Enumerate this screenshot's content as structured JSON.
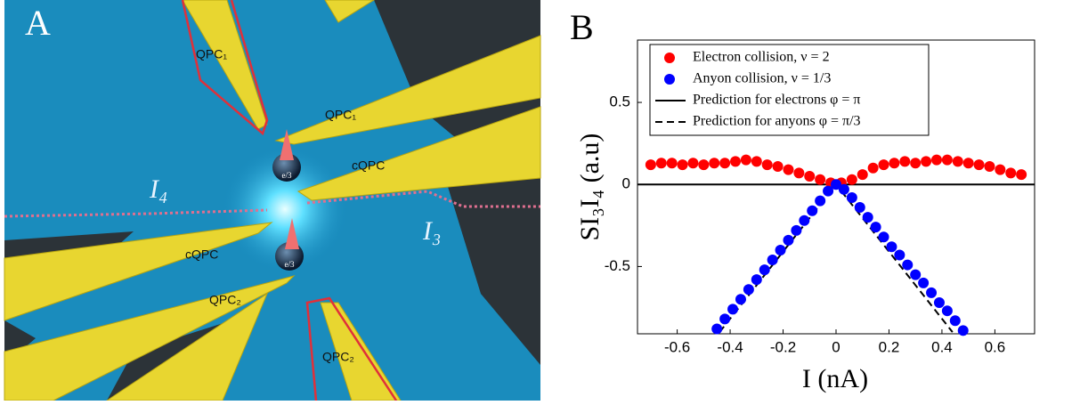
{
  "panel_a": {
    "label": "A",
    "gate_labels": [
      "QPC₁",
      "QPC₁",
      "cQPC",
      "cQPC",
      "QPC₂",
      "QPC₂"
    ],
    "current_labels": [
      "I₄",
      "I₃"
    ],
    "charge_labels": [
      "e/3",
      "e/3"
    ]
  },
  "chart_data": {
    "type": "scatter",
    "panel_label": "B",
    "x_label": "I (nA)",
    "y_label": "SI₃I₄ (a.u)",
    "xlim": [
      -0.75,
      0.75
    ],
    "xticks": [
      -0.6,
      -0.4,
      -0.2,
      0,
      0.2,
      0.4,
      0.6
    ],
    "ylim": [
      -0.91,
      0.88
    ],
    "yticks": [
      -0.5,
      0,
      0.5
    ],
    "legend": "upper left",
    "series": [
      {
        "name": "Electron collision, ν = 2",
        "color": "#ff0000",
        "type": "scatter",
        "x": [
          -0.7,
          -0.66,
          -0.62,
          -0.58,
          -0.54,
          -0.5,
          -0.46,
          -0.42,
          -0.38,
          -0.34,
          -0.3,
          -0.26,
          -0.22,
          -0.18,
          -0.14,
          -0.1,
          -0.06,
          -0.02,
          0.02,
          0.06,
          0.1,
          0.14,
          0.18,
          0.22,
          0.26,
          0.3,
          0.34,
          0.38,
          0.42,
          0.46,
          0.5,
          0.54,
          0.58,
          0.62,
          0.66,
          0.7
        ],
        "values": [
          0.12,
          0.13,
          0.13,
          0.12,
          0.13,
          0.12,
          0.13,
          0.13,
          0.14,
          0.15,
          0.14,
          0.12,
          0.11,
          0.09,
          0.07,
          0.05,
          0.03,
          0.01,
          0.01,
          0.03,
          0.06,
          0.1,
          0.12,
          0.13,
          0.14,
          0.13,
          0.14,
          0.15,
          0.15,
          0.14,
          0.13,
          0.12,
          0.11,
          0.09,
          0.07,
          0.06
        ]
      },
      {
        "name": "Anyon collision, ν = 1/3",
        "color": "#0000ff",
        "type": "scatter",
        "x": [
          -0.45,
          -0.42,
          -0.39,
          -0.36,
          -0.33,
          -0.3,
          -0.27,
          -0.24,
          -0.21,
          -0.18,
          -0.15,
          -0.12,
          -0.09,
          -0.06,
          -0.03,
          0,
          0.03,
          0.06,
          0.09,
          0.12,
          0.15,
          0.18,
          0.21,
          0.24,
          0.27,
          0.3,
          0.33,
          0.36,
          0.39,
          0.42,
          0.45,
          0.48
        ],
        "values": [
          -0.88,
          -0.82,
          -0.76,
          -0.7,
          -0.64,
          -0.58,
          -0.52,
          -0.46,
          -0.4,
          -0.34,
          -0.28,
          -0.22,
          -0.16,
          -0.1,
          -0.04,
          0,
          -0.03,
          -0.08,
          -0.14,
          -0.2,
          -0.26,
          -0.32,
          -0.38,
          -0.43,
          -0.49,
          -0.55,
          -0.6,
          -0.66,
          -0.72,
          -0.77,
          -0.83,
          -0.89
        ]
      },
      {
        "name": "Prediction for electrons φ = π",
        "color": "#000000",
        "type": "line",
        "dash": false,
        "x": [
          -0.75,
          0.75
        ],
        "values": [
          0,
          0
        ]
      },
      {
        "name": "Prediction for anyons φ = π/3",
        "color": "#000000",
        "type": "line",
        "dash": true,
        "x": [
          -0.44,
          0,
          0.44
        ],
        "values": [
          -0.9,
          0,
          -0.9
        ]
      }
    ]
  }
}
